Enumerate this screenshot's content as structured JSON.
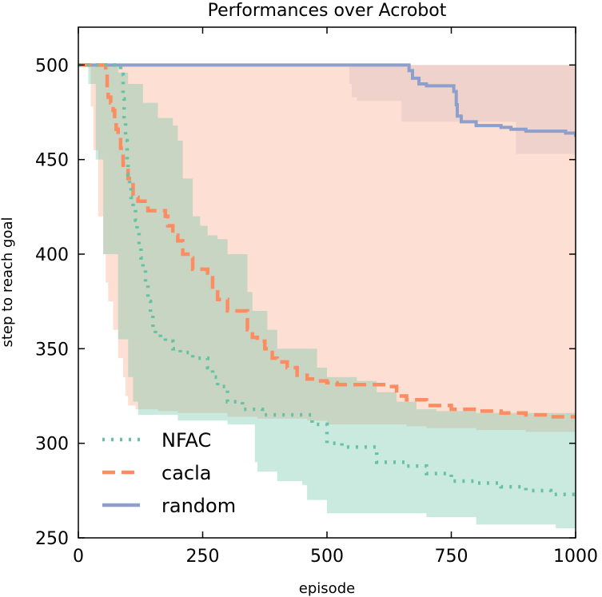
{
  "chart_data": {
    "type": "line",
    "title": "Performances over Acrobot",
    "xlabel": "episode",
    "ylabel": "step to reach goal",
    "xlim": [
      0,
      1000
    ],
    "ylim": [
      250,
      520
    ],
    "xticks": [
      "0",
      "250",
      "500",
      "750",
      "1000"
    ],
    "yticks": [
      "250",
      "300",
      "350",
      "400",
      "450",
      "500"
    ],
    "legend_position": "bottom-left",
    "series": [
      {
        "name": "NFAC",
        "color": "#66c2a5",
        "style": "dotted",
        "points": [
          [
            0,
            500
          ],
          [
            80,
            500
          ],
          [
            85,
            495
          ],
          [
            90,
            482
          ],
          [
            92,
            470
          ],
          [
            95,
            460
          ],
          [
            98,
            450
          ],
          [
            100,
            442
          ],
          [
            103,
            435
          ],
          [
            106,
            430
          ],
          [
            110,
            425
          ],
          [
            115,
            418
          ],
          [
            118,
            412
          ],
          [
            122,
            405
          ],
          [
            126,
            398
          ],
          [
            130,
            392
          ],
          [
            135,
            385
          ],
          [
            140,
            375
          ],
          [
            145,
            368
          ],
          [
            150,
            360
          ],
          [
            155,
            358
          ],
          [
            165,
            356
          ],
          [
            175,
            354
          ],
          [
            190,
            350
          ],
          [
            205,
            348
          ],
          [
            230,
            345
          ],
          [
            260,
            340
          ],
          [
            270,
            335
          ],
          [
            280,
            330
          ],
          [
            300,
            322
          ],
          [
            330,
            318
          ],
          [
            370,
            315
          ],
          [
            400,
            315
          ],
          [
            470,
            310
          ],
          [
            500,
            300
          ],
          [
            530,
            298
          ],
          [
            600,
            290
          ],
          [
            660,
            288
          ],
          [
            700,
            284
          ],
          [
            750,
            280
          ],
          [
            800,
            279
          ],
          [
            850,
            277
          ],
          [
            900,
            275
          ],
          [
            950,
            273
          ],
          [
            1000,
            271
          ]
        ]
      },
      {
        "name": "cacla",
        "color": "#fc8d62",
        "style": "dashed",
        "points": [
          [
            0,
            500
          ],
          [
            52,
            500
          ],
          [
            55,
            495
          ],
          [
            58,
            488
          ],
          [
            60,
            483
          ],
          [
            65,
            480
          ],
          [
            70,
            476
          ],
          [
            73,
            470
          ],
          [
            76,
            466
          ],
          [
            80,
            462
          ],
          [
            85,
            456
          ],
          [
            90,
            447
          ],
          [
            95,
            446
          ],
          [
            100,
            440
          ],
          [
            110,
            430
          ],
          [
            120,
            428
          ],
          [
            140,
            423
          ],
          [
            170,
            423
          ],
          [
            175,
            420
          ],
          [
            180,
            415
          ],
          [
            190,
            410
          ],
          [
            200,
            407
          ],
          [
            210,
            400
          ],
          [
            225,
            398
          ],
          [
            230,
            392
          ],
          [
            260,
            390
          ],
          [
            270,
            380
          ],
          [
            280,
            376
          ],
          [
            300,
            370
          ],
          [
            330,
            370
          ],
          [
            340,
            360
          ],
          [
            350,
            356
          ],
          [
            360,
            354
          ],
          [
            375,
            350
          ],
          [
            390,
            345
          ],
          [
            400,
            343
          ],
          [
            420,
            340
          ],
          [
            440,
            336
          ],
          [
            460,
            334
          ],
          [
            480,
            333
          ],
          [
            500,
            332
          ],
          [
            520,
            331
          ],
          [
            560,
            331
          ],
          [
            630,
            330
          ],
          [
            640,
            325
          ],
          [
            660,
            323
          ],
          [
            700,
            320
          ],
          [
            750,
            318
          ],
          [
            800,
            317
          ],
          [
            850,
            316
          ],
          [
            900,
            315
          ],
          [
            950,
            314
          ],
          [
            1000,
            314
          ]
        ]
      },
      {
        "name": "random",
        "color": "#8da0cb",
        "style": "solid",
        "points": [
          [
            0,
            500
          ],
          [
            660,
            500
          ],
          [
            665,
            497
          ],
          [
            672,
            493
          ],
          [
            685,
            490
          ],
          [
            700,
            489
          ],
          [
            750,
            489
          ],
          [
            755,
            486
          ],
          [
            760,
            479
          ],
          [
            762,
            473
          ],
          [
            770,
            470
          ],
          [
            800,
            468
          ],
          [
            850,
            467
          ],
          [
            870,
            466
          ],
          [
            900,
            465
          ],
          [
            950,
            465
          ],
          [
            980,
            464
          ],
          [
            1000,
            462
          ]
        ]
      }
    ],
    "bands": [
      {
        "series": "random",
        "color": "#8da0cb",
        "opacity": 0.18,
        "upper": [
          [
            0,
            500
          ],
          [
            1000,
            500
          ]
        ],
        "lower": [
          [
            0,
            500
          ],
          [
            540,
            500
          ],
          [
            545,
            490
          ],
          [
            550,
            483
          ],
          [
            560,
            481
          ],
          [
            640,
            481
          ],
          [
            650,
            470
          ],
          [
            680,
            470
          ],
          [
            870,
            470
          ],
          [
            880,
            453
          ],
          [
            1000,
            453
          ]
        ]
      },
      {
        "series": "cacla",
        "color": "#fc8d62",
        "opacity": 0.28,
        "upper": [
          [
            0,
            500
          ],
          [
            1000,
            500
          ]
        ],
        "lower": [
          [
            0,
            500
          ],
          [
            20,
            500
          ],
          [
            25,
            478
          ],
          [
            30,
            455
          ],
          [
            40,
            420
          ],
          [
            50,
            400
          ],
          [
            55,
            385
          ],
          [
            60,
            375
          ],
          [
            70,
            360
          ],
          [
            80,
            345
          ],
          [
            90,
            335
          ],
          [
            95,
            325
          ],
          [
            100,
            320
          ],
          [
            115,
            318
          ],
          [
            160,
            317
          ],
          [
            200,
            316
          ],
          [
            300,
            314
          ],
          [
            360,
            313
          ],
          [
            400,
            313
          ],
          [
            460,
            312
          ],
          [
            500,
            310
          ],
          [
            560,
            310
          ],
          [
            660,
            309
          ],
          [
            700,
            308
          ],
          [
            800,
            307
          ],
          [
            900,
            306
          ],
          [
            1000,
            306
          ]
        ]
      },
      {
        "series": "NFAC",
        "color": "#66c2a5",
        "opacity": 0.35,
        "upper": [
          [
            0,
            500
          ],
          [
            60,
            500
          ],
          [
            80,
            496
          ],
          [
            100,
            490
          ],
          [
            130,
            480
          ],
          [
            160,
            472
          ],
          [
            190,
            468
          ],
          [
            200,
            460
          ],
          [
            210,
            440
          ],
          [
            230,
            420
          ],
          [
            245,
            415
          ],
          [
            260,
            410
          ],
          [
            280,
            408
          ],
          [
            300,
            400
          ],
          [
            340,
            380
          ],
          [
            350,
            370
          ],
          [
            380,
            360
          ],
          [
            400,
            350
          ],
          [
            480,
            340
          ],
          [
            500,
            335
          ],
          [
            560,
            333
          ],
          [
            600,
            327
          ],
          [
            640,
            322
          ],
          [
            680,
            318
          ],
          [
            720,
            317
          ],
          [
            800,
            316
          ],
          [
            1000,
            316
          ]
        ],
        "lower": [
          [
            0,
            500
          ],
          [
            10,
            500
          ],
          [
            20,
            490
          ],
          [
            35,
            450
          ],
          [
            50,
            400
          ],
          [
            80,
            355
          ],
          [
            100,
            335
          ],
          [
            110,
            322
          ],
          [
            120,
            315
          ],
          [
            150,
            315
          ],
          [
            200,
            312
          ],
          [
            300,
            310
          ],
          [
            350,
            310
          ],
          [
            355,
            290
          ],
          [
            360,
            285
          ],
          [
            400,
            280
          ],
          [
            450,
            278
          ],
          [
            460,
            270
          ],
          [
            500,
            263
          ],
          [
            700,
            261
          ],
          [
            800,
            257
          ],
          [
            900,
            257
          ],
          [
            960,
            255
          ],
          [
            1000,
            254
          ]
        ]
      }
    ]
  }
}
